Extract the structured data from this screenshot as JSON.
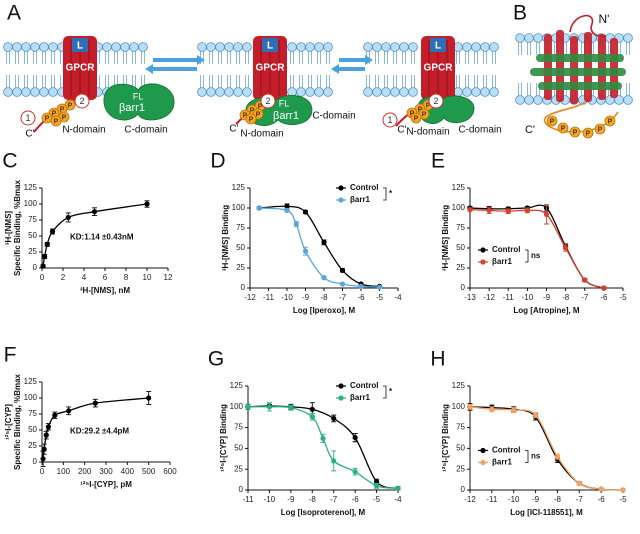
{
  "diagrams": {
    "a": {
      "panel": "A",
      "ligand": "L",
      "receptor": "GPCR",
      "sites": [
        "1",
        "2"
      ],
      "phosphate": "P",
      "arrestin": "βarr1",
      "fl": "FL",
      "c_term": "C'",
      "n_domain": "N-domain",
      "c_domain": "C-domain"
    },
    "b": {
      "panel": "B",
      "n_term": "N'",
      "c_term": "C'",
      "phosphate": "P"
    }
  },
  "chart_data": [
    {
      "type": "scatter",
      "panel": "C",
      "xlabel": "³H-[NMS], nM",
      "ylabel": [
        "³H-[NMS]",
        "Specific Binding, %Bmax"
      ],
      "annotation": "KD:1.14 ±0.43nM",
      "xlim": [
        0,
        12
      ],
      "xticks": [
        0,
        2,
        4,
        6,
        8,
        10,
        12
      ],
      "ylim": [
        0,
        125
      ],
      "yticks": [
        0,
        25,
        50,
        75,
        100,
        125
      ],
      "series": [
        {
          "color": "#000000",
          "x": [
            0.1,
            0.25,
            0.5,
            1,
            2.5,
            5,
            10
          ],
          "values": [
            3,
            18,
            37,
            57,
            79,
            88,
            100
          ],
          "errors": [
            2,
            3,
            3,
            4,
            7,
            6,
            5
          ]
        }
      ]
    },
    {
      "type": "scatter",
      "panel": "D",
      "xlabel": "Log [Iperoxo], M",
      "ylabel": [
        "³H-[NMS] Binding"
      ],
      "legend": "upper right",
      "significance": "*",
      "xlim": [
        -12,
        -4
      ],
      "xticks": [
        -12,
        -11,
        -10,
        -9,
        -8,
        -7,
        -6,
        -5,
        -4
      ],
      "ylim": [
        0,
        125
      ],
      "yticks": [
        0,
        25,
        50,
        75,
        100,
        125
      ],
      "series": [
        {
          "name": "Control",
          "color": "#000000",
          "x": [
            -11.5,
            -10,
            -9,
            -8,
            -7,
            -6,
            -5
          ],
          "values": [
            100,
            102,
            95,
            57,
            22,
            5,
            2
          ],
          "errors": [
            1,
            3,
            2,
            3,
            2,
            1,
            1
          ]
        },
        {
          "name": "βarr1",
          "color": "#5aa6dc",
          "x": [
            -11.5,
            -10,
            -9.5,
            -9,
            -8,
            -7,
            -6,
            -5
          ],
          "values": [
            100,
            97,
            80,
            46,
            13,
            5,
            2,
            1
          ],
          "errors": [
            1,
            2,
            3,
            5,
            2,
            1,
            1,
            1
          ]
        }
      ]
    },
    {
      "type": "scatter",
      "panel": "E",
      "xlabel": "Log [Atropine], M",
      "ylabel": [
        "³H-[NMS] Binding"
      ],
      "legend": "center left",
      "significance": "ns",
      "xlim": [
        -13,
        -5
      ],
      "xticks": [
        -13,
        -12,
        -11,
        -10,
        -9,
        -8,
        -7,
        -6,
        -5
      ],
      "ylim": [
        0,
        125
      ],
      "yticks": [
        0,
        25,
        50,
        75,
        100,
        125
      ],
      "series": [
        {
          "name": "Control",
          "color": "#000000",
          "x": [
            -13,
            -12,
            -11,
            -10,
            -9,
            -8,
            -7,
            -6
          ],
          "values": [
            100,
            99,
            99,
            100,
            100,
            52,
            10,
            0
          ],
          "errors": [
            2,
            3,
            2,
            2,
            4,
            3,
            2,
            1
          ]
        },
        {
          "name": "βarr1",
          "color": "#d9412b",
          "x": [
            -13,
            -12,
            -11,
            -10,
            -9,
            -8,
            -7,
            -6
          ],
          "values": [
            98,
            97,
            96,
            97,
            92,
            50,
            10,
            0
          ],
          "errors": [
            2,
            4,
            3,
            3,
            12,
            4,
            2,
            1
          ]
        }
      ]
    },
    {
      "type": "scatter",
      "panel": "F",
      "xlabel": "¹²⁵I-[CYP], pM",
      "ylabel": [
        "¹²⁵I-[CYP]",
        "Specific Binding, %Bmax"
      ],
      "annotation": "KD:29.2 ±4.4pM",
      "xlim": [
        0,
        600
      ],
      "xticks": [
        0,
        100,
        200,
        300,
        400,
        500,
        600
      ],
      "ylim": [
        0,
        125
      ],
      "yticks": [
        0,
        25,
        50,
        75,
        100,
        125
      ],
      "series": [
        {
          "color": "#000000",
          "x": [
            5,
            10,
            20,
            30,
            60,
            125,
            250,
            500
          ],
          "values": [
            5,
            20,
            42,
            55,
            73,
            80,
            92,
            100
          ],
          "errors": [
            12,
            8,
            6,
            5,
            5,
            6,
            6,
            10
          ]
        }
      ]
    },
    {
      "type": "scatter",
      "panel": "G",
      "xlabel": "Log [Isoproterenol], M",
      "ylabel": [
        "¹²⁵I-[CYP] Binding"
      ],
      "legend": "upper right",
      "significance": "*",
      "xlim": [
        -11,
        -4
      ],
      "xticks": [
        -11,
        -10,
        -9,
        -8,
        -7,
        -6,
        -5,
        -4
      ],
      "ylim": [
        0,
        125
      ],
      "yticks": [
        0,
        25,
        50,
        75,
        100,
        125
      ],
      "series": [
        {
          "name": "Control",
          "color": "#000000",
          "x": [
            -11,
            -10,
            -9,
            -8,
            -7,
            -6,
            -5,
            -4
          ],
          "values": [
            100,
            101,
            100,
            97,
            86,
            63,
            10,
            2
          ],
          "errors": [
            3,
            2,
            3,
            8,
            4,
            5,
            3,
            2
          ]
        },
        {
          "name": "βarr1",
          "color": "#2bb07f",
          "x": [
            -11,
            -10,
            -9,
            -8,
            -7.5,
            -7,
            -6,
            -5,
            -4
          ],
          "values": [
            100,
            100,
            99,
            88,
            62,
            35,
            22,
            5,
            2
          ],
          "errors": [
            3,
            5,
            3,
            4,
            5,
            12,
            4,
            3,
            2
          ]
        }
      ]
    },
    {
      "type": "scatter",
      "panel": "H",
      "xlabel": "Log [ICI-118551], M",
      "ylabel": [
        "¹²⁵I-[CYP] Binding"
      ],
      "legend": "center left",
      "significance": "ns",
      "xlim": [
        -12,
        -5
      ],
      "xticks": [
        -12,
        -11,
        -10,
        -9,
        -8,
        -7,
        -6,
        -5
      ],
      "ylim": [
        0,
        125
      ],
      "yticks": [
        0,
        25,
        50,
        75,
        100,
        125
      ],
      "series": [
        {
          "name": "Control",
          "color": "#000000",
          "x": [
            -12,
            -11,
            -10,
            -9,
            -8,
            -7,
            -6,
            -5
          ],
          "values": [
            100,
            99,
            97,
            88,
            37,
            8,
            1,
            0
          ],
          "errors": [
            4,
            3,
            3,
            4,
            4,
            2,
            1,
            1
          ]
        },
        {
          "name": "βarr1",
          "color": "#f4a261",
          "x": [
            -12,
            -11,
            -10,
            -9,
            -8,
            -7,
            -6,
            -5
          ],
          "values": [
            100,
            97,
            96,
            90,
            40,
            8,
            1,
            0
          ],
          "errors": [
            3,
            3,
            3,
            3,
            3,
            2,
            1,
            1
          ]
        }
      ]
    }
  ]
}
